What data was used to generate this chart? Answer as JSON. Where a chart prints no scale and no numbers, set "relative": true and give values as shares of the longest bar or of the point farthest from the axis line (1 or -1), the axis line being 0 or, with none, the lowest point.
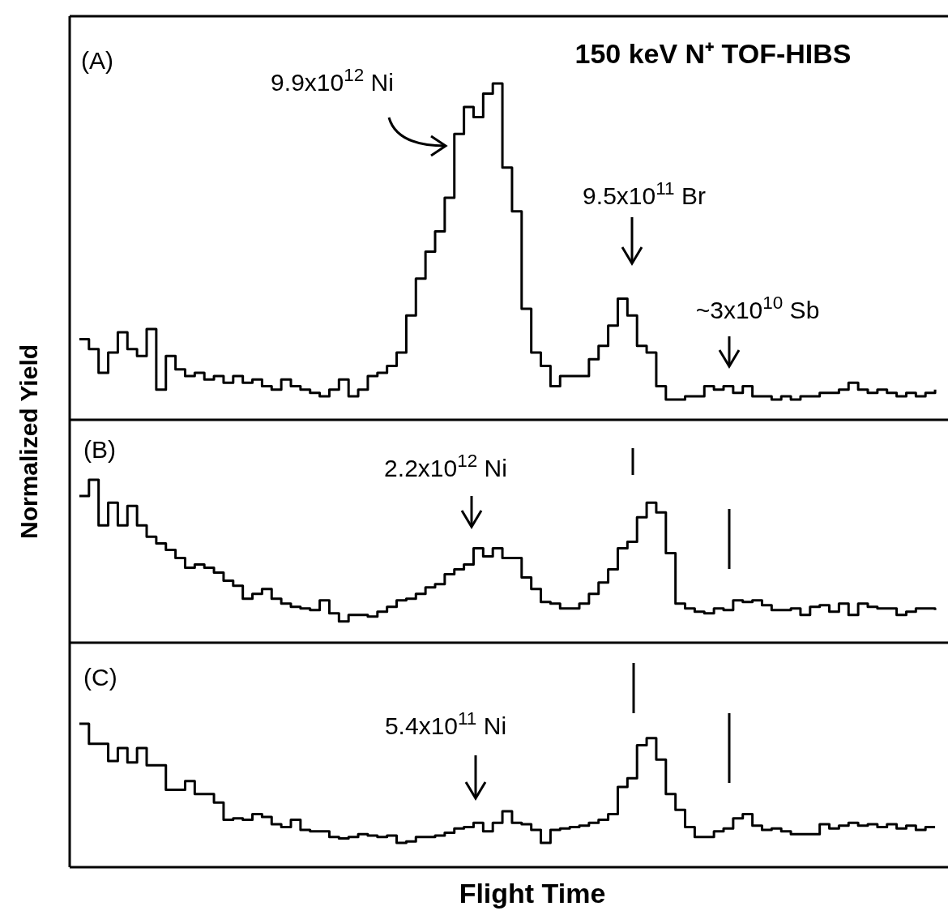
{
  "chart_data": [
    {
      "type": "step",
      "relative": true,
      "title": "150 keV N⁺ TOF-HIBS",
      "color": "#000000",
      "annotations": [
        "(A)",
        "9.9x10$^{12}$ Ni",
        "9.5x10$^{11}$ Br",
        "~3x10$^{10}$ Sb"
      ],
      "categories": [
        null,
        null,
        null,
        null,
        null,
        null,
        null,
        null,
        null,
        null,
        null,
        null,
        null,
        null,
        null,
        null,
        null,
        null,
        null,
        null,
        null,
        null,
        null,
        null,
        null,
        null,
        null,
        null,
        null,
        null,
        null,
        null,
        null,
        null,
        null,
        null,
        null,
        null,
        null,
        null,
        null,
        null,
        null,
        null,
        null,
        null,
        null,
        null,
        null,
        null,
        null,
        null,
        null,
        null,
        null,
        null,
        null,
        null,
        null,
        null,
        null,
        null,
        null,
        null,
        null,
        null,
        null,
        null,
        null,
        null,
        null,
        null,
        null,
        null,
        null,
        null,
        null,
        null,
        null,
        null,
        null,
        null,
        null,
        null,
        null,
        null,
        null,
        null,
        null,
        null
      ],
      "values": [
        0.24,
        0.21,
        0.14,
        0.2,
        0.26,
        0.21,
        0.19,
        0.27,
        0.09,
        0.19,
        0.15,
        0.13,
        0.14,
        0.12,
        0.13,
        0.11,
        0.13,
        0.11,
        0.12,
        0.1,
        0.09,
        0.12,
        0.1,
        0.09,
        0.08,
        0.07,
        0.09,
        0.12,
        0.07,
        0.09,
        0.13,
        0.14,
        0.16,
        0.2,
        0.31,
        0.42,
        0.5,
        0.56,
        0.66,
        0.85,
        0.93,
        0.9,
        0.97,
        1.0,
        0.75,
        0.62,
        0.33,
        0.2,
        0.16,
        0.1,
        0.13,
        0.13,
        0.13,
        0.18,
        0.22,
        0.28,
        0.36,
        0.31,
        0.22,
        0.2,
        0.1,
        0.06,
        0.06,
        0.07,
        0.07,
        0.1,
        0.09,
        0.1,
        0.08,
        0.1,
        0.07,
        0.07,
        0.06,
        0.07,
        0.06,
        0.07,
        0.07,
        0.08,
        0.08,
        0.09,
        0.11,
        0.09,
        0.08,
        0.09,
        0.08,
        0.07,
        0.08,
        0.07,
        0.08,
        0.09
      ]
    },
    {
      "type": "step",
      "relative": true,
      "ylabel": "Normalized Yield",
      "color": "#000000",
      "annotations": [
        "(B)",
        "2.2x10$^{12}$ Ni"
      ],
      "categories": [
        null,
        null,
        null,
        null,
        null,
        null,
        null,
        null,
        null,
        null,
        null,
        null,
        null,
        null,
        null,
        null,
        null,
        null,
        null,
        null,
        null,
        null,
        null,
        null,
        null,
        null,
        null,
        null,
        null,
        null,
        null,
        null,
        null,
        null,
        null,
        null,
        null,
        null,
        null,
        null,
        null,
        null,
        null,
        null,
        null,
        null,
        null,
        null,
        null,
        null,
        null,
        null,
        null,
        null,
        null,
        null,
        null,
        null,
        null,
        null,
        null,
        null,
        null,
        null,
        null,
        null,
        null,
        null,
        null,
        null,
        null,
        null,
        null,
        null,
        null,
        null,
        null,
        null,
        null,
        null,
        null,
        null,
        null,
        null,
        null,
        null,
        null,
        null,
        null,
        null
      ],
      "values": [
        0.9,
        1.0,
        0.72,
        0.86,
        0.72,
        0.84,
        0.72,
        0.65,
        0.61,
        0.57,
        0.52,
        0.46,
        0.48,
        0.46,
        0.43,
        0.38,
        0.35,
        0.27,
        0.3,
        0.33,
        0.27,
        0.24,
        0.22,
        0.21,
        0.2,
        0.26,
        0.18,
        0.13,
        0.17,
        0.17,
        0.16,
        0.19,
        0.22,
        0.26,
        0.27,
        0.3,
        0.34,
        0.36,
        0.42,
        0.45,
        0.48,
        0.58,
        0.53,
        0.58,
        0.52,
        0.52,
        0.4,
        0.33,
        0.25,
        0.24,
        0.21,
        0.21,
        0.24,
        0.3,
        0.37,
        0.45,
        0.58,
        0.62,
        0.77,
        0.86,
        0.8,
        0.55,
        0.24,
        0.21,
        0.19,
        0.18,
        0.21,
        0.2,
        0.26,
        0.25,
        0.26,
        0.23,
        0.2,
        0.2,
        0.21,
        0.17,
        0.22,
        0.23,
        0.19,
        0.24,
        0.17,
        0.24,
        0.22,
        0.21,
        0.21,
        0.17,
        0.19,
        0.21,
        0.21,
        0.2
      ]
    },
    {
      "type": "step",
      "relative": true,
      "xlabel": "Flight Time",
      "color": "#000000",
      "annotations": [
        "(C)",
        "5.4x10$^{11}$ Ni"
      ],
      "categories": [
        null,
        null,
        null,
        null,
        null,
        null,
        null,
        null,
        null,
        null,
        null,
        null,
        null,
        null,
        null,
        null,
        null,
        null,
        null,
        null,
        null,
        null,
        null,
        null,
        null,
        null,
        null,
        null,
        null,
        null,
        null,
        null,
        null,
        null,
        null,
        null,
        null,
        null,
        null,
        null,
        null,
        null,
        null,
        null,
        null,
        null,
        null,
        null,
        null,
        null,
        null,
        null,
        null,
        null,
        null,
        null,
        null,
        null,
        null,
        null,
        null,
        null,
        null,
        null,
        null,
        null,
        null,
        null,
        null,
        null,
        null,
        null,
        null,
        null,
        null,
        null,
        null,
        null,
        null,
        null,
        null,
        null,
        null,
        null,
        null,
        null,
        null,
        null,
        null,
        null
      ],
      "values": [
        1.0,
        0.86,
        0.86,
        0.74,
        0.83,
        0.73,
        0.83,
        0.71,
        0.71,
        0.54,
        0.54,
        0.6,
        0.51,
        0.51,
        0.45,
        0.33,
        0.34,
        0.33,
        0.37,
        0.35,
        0.3,
        0.28,
        0.33,
        0.26,
        0.25,
        0.25,
        0.21,
        0.2,
        0.21,
        0.23,
        0.22,
        0.21,
        0.22,
        0.17,
        0.18,
        0.21,
        0.21,
        0.22,
        0.24,
        0.27,
        0.28,
        0.31,
        0.25,
        0.31,
        0.39,
        0.31,
        0.3,
        0.26,
        0.17,
        0.26,
        0.27,
        0.28,
        0.29,
        0.31,
        0.33,
        0.37,
        0.56,
        0.62,
        0.85,
        0.9,
        0.75,
        0.51,
        0.4,
        0.28,
        0.21,
        0.21,
        0.25,
        0.27,
        0.34,
        0.37,
        0.29,
        0.26,
        0.27,
        0.25,
        0.23,
        0.23,
        0.23,
        0.3,
        0.27,
        0.29,
        0.31,
        0.29,
        0.3,
        0.28,
        0.3,
        0.27,
        0.29,
        0.26,
        0.28,
        0.28
      ]
    }
  ]
}
